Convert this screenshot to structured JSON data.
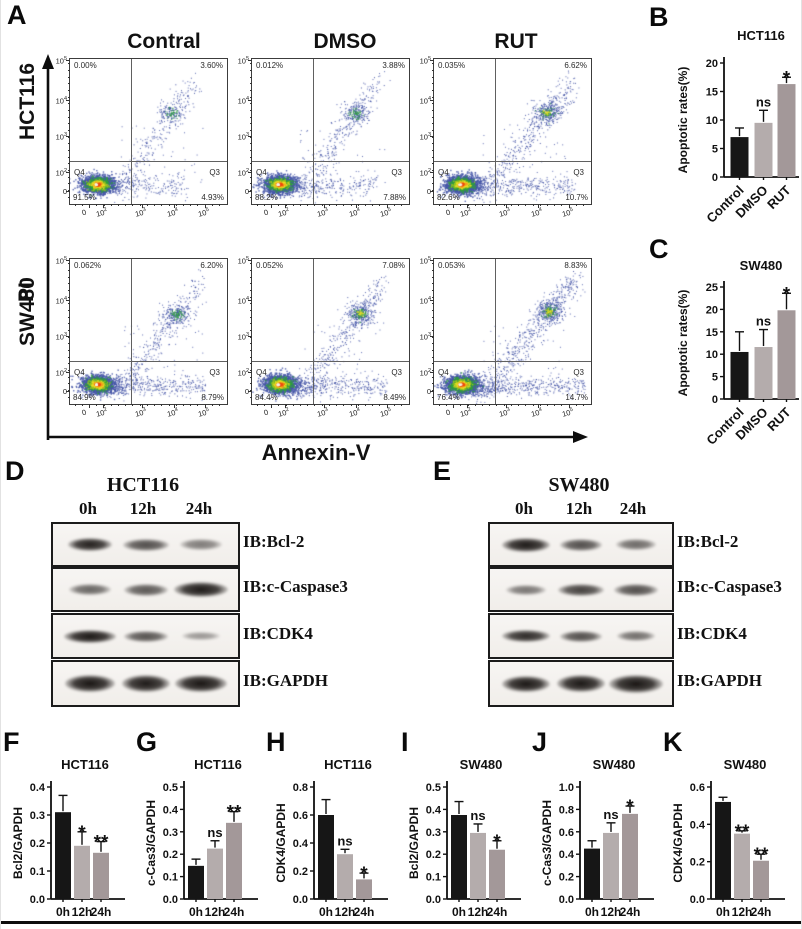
{
  "panel_a": {
    "letter": "A",
    "column_headers": [
      "Contral",
      "DMSO",
      "RUT"
    ],
    "row_labels": [
      "HCT116",
      "SW480"
    ],
    "y_axis_label": "PI",
    "x_axis_label": "Annexin-V",
    "y_tick_labels": [
      "10^5",
      "10^4",
      "10^3",
      "10^2",
      "0"
    ],
    "x_tick_labels": [
      "0",
      "10^2",
      "10^3",
      "10^4",
      "10^5"
    ],
    "plots": [
      {
        "cell_line": "HCT116",
        "treatment": "Contral",
        "ul_pct": "0.00%",
        "ur_pct": "3.60%",
        "q4_label": "Q4",
        "q4_pct": "91.5%",
        "q3_label": "Q3",
        "q3_pct": "4.93%"
      },
      {
        "cell_line": "HCT116",
        "treatment": "DMSO",
        "ul_pct": "0.012%",
        "ur_pct": "3.88%",
        "q4_label": "Q4",
        "q4_pct": "88.2%",
        "q3_label": "Q3",
        "q3_pct": "7.88%"
      },
      {
        "cell_line": "HCT116",
        "treatment": "RUT",
        "ul_pct": "0.035%",
        "ur_pct": "6.62%",
        "q4_label": "Q4",
        "q4_pct": "82.6%",
        "q3_label": "Q3",
        "q3_pct": "10.7%"
      },
      {
        "cell_line": "SW480",
        "treatment": "Contral",
        "ul_pct": "0.062%",
        "ur_pct": "6.20%",
        "q4_label": "Q4",
        "q4_pct": "84.9%",
        "q3_label": "Q3",
        "q3_pct": "8.79%"
      },
      {
        "cell_line": "SW480",
        "treatment": "DMSO",
        "ul_pct": "0.052%",
        "ur_pct": "7.08%",
        "q4_label": "Q4",
        "q4_pct": "84.4%",
        "q3_label": "Q3",
        "q3_pct": "8.49%"
      },
      {
        "cell_line": "SW480",
        "treatment": "RUT",
        "ul_pct": "0.053%",
        "ur_pct": "8.83%",
        "q4_label": "Q4",
        "q4_pct": "76.4%",
        "q3_label": "Q3",
        "q3_pct": "14.7%"
      }
    ]
  },
  "chart_data": {
    "b": {
      "type": "bar",
      "panel_letter": "B",
      "title": "HCT116",
      "ylabel": "Apoptotic rates(%)",
      "categories": [
        "Control",
        "DMSO",
        "RUT"
      ],
      "values": [
        7.0,
        9.5,
        16.3
      ],
      "errors": [
        1.6,
        2.2,
        1.2
      ],
      "significance": [
        "",
        "ns",
        "*"
      ],
      "colors": [
        "#161616",
        "#b4acac",
        "#a39899"
      ],
      "ylim": [
        0,
        20
      ],
      "yticks": [
        0,
        5,
        10,
        15,
        20
      ],
      "tick_decimals": 0
    },
    "c": {
      "type": "bar",
      "panel_letter": "C",
      "title": "SW480",
      "ylabel": "Apoptotic rates(%)",
      "categories": [
        "Control",
        "DMSO",
        "RUT"
      ],
      "values": [
        10.5,
        11.6,
        19.8
      ],
      "errors": [
        4.5,
        3.9,
        3.8
      ],
      "significance": [
        "",
        "ns",
        "*"
      ],
      "colors": [
        "#161616",
        "#b4acac",
        "#a39899"
      ],
      "ylim": [
        0,
        25
      ],
      "yticks": [
        0,
        5,
        10,
        15,
        20,
        25
      ],
      "tick_decimals": 0
    },
    "f": {
      "type": "bar",
      "panel_letter": "F",
      "title": "HCT116",
      "ylabel": "Bcl2/GAPDH",
      "categories": [
        "0h",
        "12h",
        "24h"
      ],
      "values": [
        0.31,
        0.19,
        0.165
      ],
      "errors": [
        0.06,
        0.05,
        0.04
      ],
      "significance": [
        "",
        "*",
        "**"
      ],
      "colors": [
        "#161616",
        "#b4acac",
        "#a39899"
      ],
      "ylim": [
        0,
        0.4
      ],
      "yticks": [
        0,
        0.1,
        0.2,
        0.3,
        0.4
      ],
      "tick_decimals": 1
    },
    "g": {
      "type": "bar",
      "panel_letter": "G",
      "title": "HCT116",
      "ylabel": "c-Cas3/GAPDH",
      "categories": [
        "0h",
        "12h",
        "24h"
      ],
      "values": [
        0.148,
        0.225,
        0.34
      ],
      "errors": [
        0.03,
        0.035,
        0.05
      ],
      "significance": [
        "",
        "ns",
        "**"
      ],
      "colors": [
        "#161616",
        "#b4acac",
        "#a39899"
      ],
      "ylim": [
        0,
        0.5
      ],
      "yticks": [
        0,
        0.1,
        0.2,
        0.3,
        0.4,
        0.5
      ],
      "tick_decimals": 1
    },
    "h": {
      "type": "bar",
      "panel_letter": "H",
      "title": "HCT116",
      "ylabel": "CDK4/GAPDH",
      "categories": [
        "0h",
        "12h",
        "24h"
      ],
      "values": [
        0.6,
        0.32,
        0.14
      ],
      "errors": [
        0.11,
        0.035,
        0.045
      ],
      "significance": [
        "",
        "ns",
        "*"
      ],
      "colors": [
        "#161616",
        "#b4acac",
        "#a39899"
      ],
      "ylim": [
        0,
        0.8
      ],
      "yticks": [
        0,
        0.2,
        0.4,
        0.6,
        0.8
      ],
      "tick_decimals": 1
    },
    "i": {
      "type": "bar",
      "panel_letter": "I",
      "title": "SW480",
      "ylabel": "Bcl2/GAPDH",
      "categories": [
        "0h",
        "12h",
        "24h"
      ],
      "values": [
        0.375,
        0.295,
        0.22
      ],
      "errors": [
        0.06,
        0.04,
        0.04
      ],
      "significance": [
        "",
        "ns",
        "*"
      ],
      "colors": [
        "#161616",
        "#b4acac",
        "#a39899"
      ],
      "ylim": [
        0,
        0.5
      ],
      "yticks": [
        0,
        0.1,
        0.2,
        0.3,
        0.4,
        0.5
      ],
      "tick_decimals": 1
    },
    "j": {
      "type": "bar",
      "panel_letter": "J",
      "title": "SW480",
      "ylabel": "c-Cas3/GAPDH",
      "categories": [
        "0h",
        "12h",
        "24h"
      ],
      "values": [
        0.45,
        0.59,
        0.76
      ],
      "errors": [
        0.07,
        0.09,
        0.07
      ],
      "significance": [
        "",
        "ns",
        "*"
      ],
      "colors": [
        "#161616",
        "#b4acac",
        "#a39899"
      ],
      "ylim": [
        0,
        1.0
      ],
      "yticks": [
        0,
        0.2,
        0.4,
        0.6,
        0.8,
        1.0
      ],
      "tick_decimals": 1
    },
    "k": {
      "type": "bar",
      "panel_letter": "K",
      "title": "SW480",
      "ylabel": "CDK4/GAPDH",
      "categories": [
        "0h",
        "12h",
        "24h"
      ],
      "values": [
        0.52,
        0.35,
        0.205
      ],
      "errors": [
        0.025,
        0.015,
        0.035
      ],
      "significance": [
        "",
        "**",
        "**"
      ],
      "colors": [
        "#161616",
        "#b4acac",
        "#a39899"
      ],
      "ylim": [
        0,
        0.6
      ],
      "yticks": [
        0,
        0.2,
        0.4,
        0.6
      ],
      "tick_decimals": 1
    }
  },
  "panel_d": {
    "letter": "D",
    "title": "HCT116",
    "lanes": [
      "0h",
      "12h",
      "24h"
    ],
    "blots": [
      {
        "label": "IB:Bcl-2",
        "bands": [
          [
            44,
            0.92,
            13
          ],
          [
            46,
            0.72,
            12
          ],
          [
            42,
            0.52,
            11
          ]
        ]
      },
      {
        "label": "IB:c-Caspase3",
        "bands": [
          [
            42,
            0.62,
            11
          ],
          [
            44,
            0.68,
            12
          ],
          [
            54,
            0.95,
            15
          ]
        ]
      },
      {
        "label": "IB:CDK4",
        "bands": [
          [
            52,
            0.96,
            13
          ],
          [
            44,
            0.7,
            11
          ],
          [
            38,
            0.4,
            8
          ]
        ]
      },
      {
        "label": "IB:GAPDH",
        "bands": [
          [
            50,
            0.97,
            17
          ],
          [
            48,
            0.95,
            17
          ],
          [
            52,
            0.97,
            17
          ]
        ]
      }
    ]
  },
  "panel_e": {
    "letter": "E",
    "title": "SW480",
    "lanes": [
      "0h",
      "12h",
      "24h"
    ],
    "blots": [
      {
        "label": "IB:Bcl-2",
        "bands": [
          [
            48,
            0.95,
            14
          ],
          [
            42,
            0.72,
            12
          ],
          [
            40,
            0.6,
            11
          ]
        ]
      },
      {
        "label": "IB:c-Caspase3",
        "bands": [
          [
            40,
            0.55,
            10
          ],
          [
            46,
            0.78,
            12
          ],
          [
            44,
            0.72,
            12
          ]
        ]
      },
      {
        "label": "IB:CDK4",
        "bands": [
          [
            48,
            0.88,
            12
          ],
          [
            42,
            0.72,
            11
          ],
          [
            38,
            0.58,
            10
          ]
        ]
      },
      {
        "label": "IB:GAPDH",
        "bands": [
          [
            48,
            0.96,
            16
          ],
          [
            48,
            0.96,
            17
          ],
          [
            54,
            0.97,
            18
          ]
        ]
      }
    ]
  }
}
